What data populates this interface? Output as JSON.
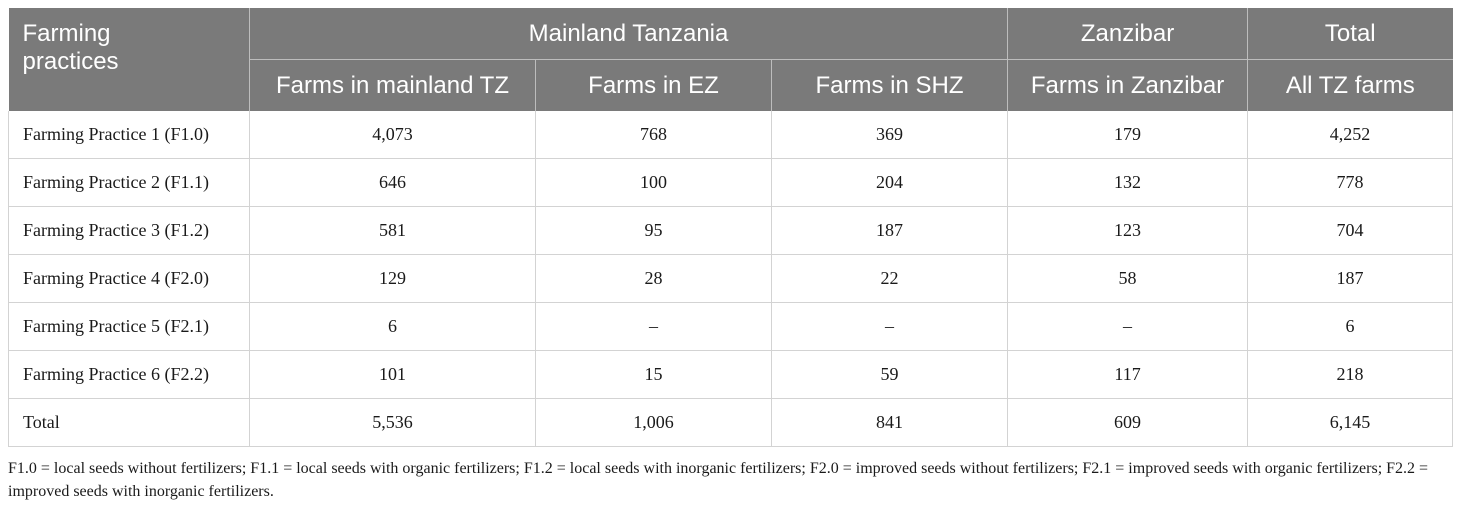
{
  "header": {
    "corner": "Farming\npractices",
    "groups": [
      "Mainland Tanzania",
      "Zanzibar",
      "Total"
    ],
    "columns": [
      "Farms in mainland TZ",
      "Farms in EZ",
      "Farms in SHZ",
      "Farms in Zanzibar",
      "All TZ farms"
    ]
  },
  "rows": [
    {
      "label": "Farming Practice 1 (F1.0)",
      "values": [
        "4,073",
        "768",
        "369",
        "179",
        "4,252"
      ]
    },
    {
      "label": "Farming Practice 2 (F1.1)",
      "values": [
        "646",
        "100",
        "204",
        "132",
        "778"
      ]
    },
    {
      "label": "Farming Practice 3 (F1.2)",
      "values": [
        "581",
        "95",
        "187",
        "123",
        "704"
      ]
    },
    {
      "label": "Farming Practice 4 (F2.0)",
      "values": [
        "129",
        "28",
        "22",
        "58",
        "187"
      ]
    },
    {
      "label": "Farming Practice 5 (F2.1)",
      "values": [
        "6",
        "–",
        "–",
        "–",
        "6"
      ]
    },
    {
      "label": "Farming Practice 6 (F2.2)",
      "values": [
        "101",
        "15",
        "59",
        "117",
        "218"
      ]
    },
    {
      "label": "Total",
      "values": [
        "5,536",
        "1,006",
        "841",
        "609",
        "6,145"
      ]
    }
  ],
  "footnote": "F1.0 = local seeds without fertilizers; F1.1 = local seeds with organic fertilizers; F1.2 = local seeds with inorganic fertilizers; F2.0 = improved seeds without fertilizers; F2.1 = improved seeds with organic fertilizers; F2.2 = improved seeds with inorganic fertilizers.",
  "colors": {
    "header_bg": "#7a7a7a",
    "header_text": "#ffffff",
    "grid": "#d3d3d3"
  }
}
